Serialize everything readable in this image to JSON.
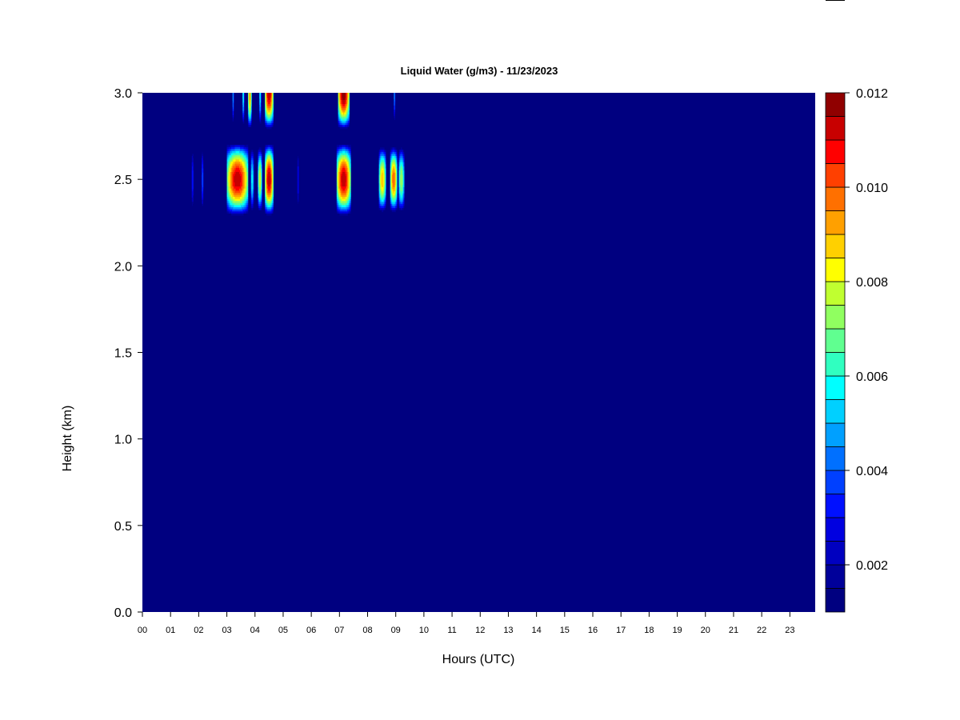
{
  "chart_data": {
    "type": "heatmap",
    "title": "Liquid Water (g/m3) - 11/23/2023",
    "xlabel": "Hours (UTC)",
    "ylabel": "Height (km)",
    "xlim": [
      0,
      23.9
    ],
    "ylim": [
      0,
      3.0
    ],
    "x_tick_labels": [
      "00",
      "01",
      "02",
      "03",
      "04",
      "05",
      "06",
      "07",
      "08",
      "09",
      "10",
      "11",
      "12",
      "13",
      "14",
      "15",
      "16",
      "17",
      "18",
      "19",
      "20",
      "21",
      "22",
      "23"
    ],
    "y_tick_labels": [
      "0.0",
      "0.5",
      "1.0",
      "1.5",
      "2.0",
      "2.5",
      "3.0"
    ],
    "y_tick_values": [
      0.0,
      0.5,
      1.0,
      1.5,
      2.0,
      2.5,
      3.0
    ],
    "background_value": 0.0,
    "colorbar": {
      "min": 0.001,
      "max": 0.012,
      "levels": 22,
      "tick_labels": [
        "0.002",
        "0.004",
        "0.006",
        "0.008",
        "0.010",
        "0.012"
      ],
      "tick_values": [
        0.002,
        0.004,
        0.006,
        0.008,
        0.01,
        0.012
      ],
      "colors": [
        "#000080",
        "#00009a",
        "#0000c0",
        "#0000e0",
        "#0010ff",
        "#0040ff",
        "#0070ff",
        "#00a0ff",
        "#00d0ff",
        "#00ffff",
        "#30ffc0",
        "#60ff90",
        "#90ff60",
        "#c0ff30",
        "#ffff00",
        "#ffd000",
        "#ffa000",
        "#ff7000",
        "#ff4000",
        "#ff0000",
        "#c80000",
        "#900000"
      ]
    },
    "cloud_layers": [
      {
        "x_start": 1.75,
        "x_end": 1.82,
        "y_center": 2.5,
        "y_half": 0.2,
        "peak": 0.0035
      },
      {
        "x_start": 2.1,
        "x_end": 2.17,
        "y_center": 2.5,
        "y_half": 0.2,
        "peak": 0.004
      },
      {
        "x_start": 3.0,
        "x_end": 3.75,
        "y_center": 2.5,
        "y_half": 0.22,
        "peak": 0.0115
      },
      {
        "x_start": 3.85,
        "x_end": 3.95,
        "y_center": 2.5,
        "y_half": 0.2,
        "peak": 0.006
      },
      {
        "x_start": 4.1,
        "x_end": 4.25,
        "y_center": 2.5,
        "y_half": 0.2,
        "peak": 0.008
      },
      {
        "x_start": 4.35,
        "x_end": 4.65,
        "y_center": 2.5,
        "y_half": 0.22,
        "peak": 0.0115
      },
      {
        "x_start": 5.5,
        "x_end": 5.56,
        "y_center": 2.5,
        "y_half": 0.2,
        "peak": 0.003
      },
      {
        "x_start": 6.9,
        "x_end": 7.4,
        "y_center": 2.5,
        "y_half": 0.22,
        "peak": 0.0115
      },
      {
        "x_start": 8.4,
        "x_end": 8.65,
        "y_center": 2.5,
        "y_half": 0.2,
        "peak": 0.009
      },
      {
        "x_start": 8.8,
        "x_end": 9.05,
        "y_center": 2.5,
        "y_half": 0.2,
        "peak": 0.01
      },
      {
        "x_start": 9.1,
        "x_end": 9.3,
        "y_center": 2.5,
        "y_half": 0.2,
        "peak": 0.0075
      },
      {
        "x_start": 3.2,
        "x_end": 3.25,
        "y_center": 3.0,
        "y_half": 0.2,
        "peak": 0.005
      },
      {
        "x_start": 3.55,
        "x_end": 3.62,
        "y_center": 3.0,
        "y_half": 0.2,
        "peak": 0.006
      },
      {
        "x_start": 3.75,
        "x_end": 3.88,
        "y_center": 3.0,
        "y_half": 0.22,
        "peak": 0.0095
      },
      {
        "x_start": 4.15,
        "x_end": 4.22,
        "y_center": 3.0,
        "y_half": 0.2,
        "peak": 0.006
      },
      {
        "x_start": 4.35,
        "x_end": 4.65,
        "y_center": 3.0,
        "y_half": 0.22,
        "peak": 0.0115
      },
      {
        "x_start": 6.95,
        "x_end": 7.35,
        "y_center": 3.0,
        "y_half": 0.22,
        "peak": 0.012
      },
      {
        "x_start": 8.93,
        "x_end": 8.98,
        "y_center": 3.0,
        "y_half": 0.18,
        "peak": 0.005
      }
    ]
  }
}
